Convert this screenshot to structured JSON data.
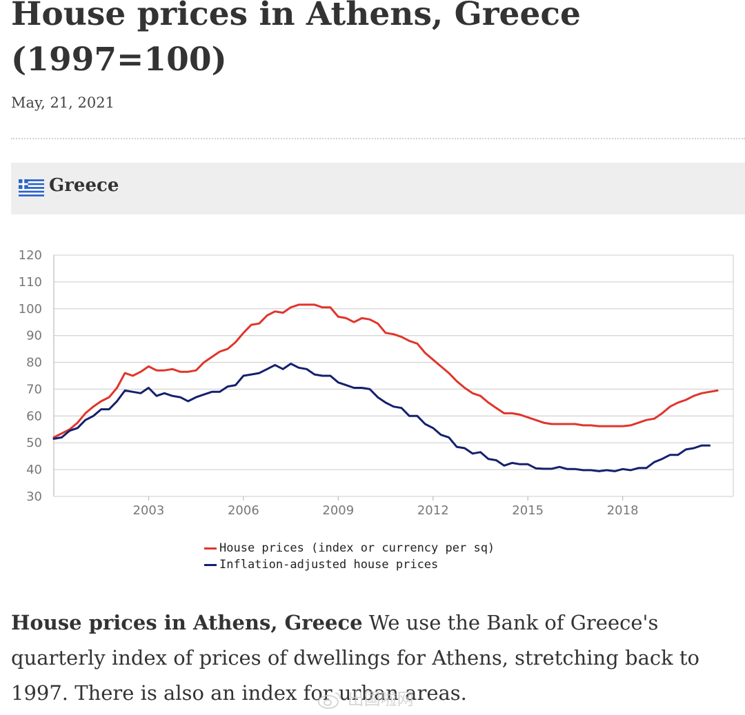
{
  "page": {
    "title": "House prices in Athens, Greece (1997=100)",
    "date": "May, 21, 2021",
    "country": "Greece",
    "description_lead": "House prices in Athens, Greece",
    "description_body": " We use the Bank of Greece's quarterly index of prices of dwellings for Athens, stretching back to 1997. There is also an index for urban areas.",
    "watermark": "出国啦网"
  },
  "colors": {
    "house_prices": "#e0352b",
    "inflation_adjusted": "#14206e",
    "grid": "#d6d6d6",
    "axis_text": "#777777",
    "country_bar": "#eeeeee"
  },
  "icons": {
    "flag": "greece-flag-icon",
    "watermark": "weibo-icon"
  },
  "chart_data": {
    "type": "line",
    "title": "",
    "xlabel": "",
    "ylabel": "",
    "x_start": 2000.0,
    "x_step": 0.25,
    "xlim": [
      2000.0,
      2021.5
    ],
    "ylim": [
      30,
      120
    ],
    "y_ticks": [
      "30",
      "40",
      "50",
      "60",
      "70",
      "80",
      "90",
      "100",
      "110",
      "120"
    ],
    "x_ticks": [
      "2003",
      "2006",
      "2009",
      "2012",
      "2015",
      "2018"
    ],
    "grid": true,
    "legend_position": "bottom-center",
    "series": [
      {
        "name": "House prices (index or currency per sq)",
        "values": [
          52,
          53.5,
          55,
          57.5,
          61,
          63.5,
          65.5,
          67,
          70.5,
          76,
          75,
          76.5,
          78.5,
          77,
          77,
          77.5,
          76.5,
          76.5,
          77,
          80,
          82,
          84,
          85,
          87.5,
          91,
          94,
          94.5,
          97.5,
          99,
          98.5,
          100.5,
          101.5,
          101.5,
          101.5,
          100.5,
          100.5,
          97,
          96.5,
          95,
          96.5,
          96,
          94.5,
          91,
          90.5,
          89.5,
          88,
          87,
          83.5,
          81,
          78.5,
          76,
          73,
          70.5,
          68.5,
          67.5,
          65,
          63,
          61,
          61,
          60.5,
          59.5,
          58.5,
          57.5,
          57,
          57,
          57,
          57,
          56.5,
          56.5,
          56.2,
          56.2,
          56.2,
          56.2,
          56.5,
          57.5,
          58.5,
          59,
          61,
          63.5,
          65,
          66,
          67.5,
          68.5,
          69,
          69.5
        ]
      },
      {
        "name": "Inflation-adjusted house prices",
        "values": [
          51.5,
          52,
          54.5,
          55.5,
          58.5,
          60,
          62.5,
          62.5,
          65.5,
          69.5,
          69,
          68.5,
          70.5,
          67.5,
          68.5,
          67.5,
          67,
          65.5,
          67,
          68,
          69,
          69,
          71,
          71.5,
          75,
          75.5,
          76,
          77.5,
          79,
          77.5,
          79.5,
          78,
          77.5,
          75.5,
          75,
          75,
          72.5,
          71.5,
          70.5,
          70.5,
          70,
          67,
          65,
          63.5,
          63,
          60,
          60,
          57,
          55.5,
          53,
          52,
          48.5,
          48,
          46,
          46.5,
          44,
          43.5,
          41.5,
          42.5,
          42,
          42,
          40.5,
          40.3,
          40.3,
          41,
          40.2,
          40.2,
          39.8,
          39.8,
          39.4,
          39.8,
          39.4,
          40.2,
          39.8,
          40.6,
          40.6,
          42.8,
          44,
          45.5,
          45.5,
          47.5,
          48,
          49,
          49
        ]
      }
    ]
  }
}
